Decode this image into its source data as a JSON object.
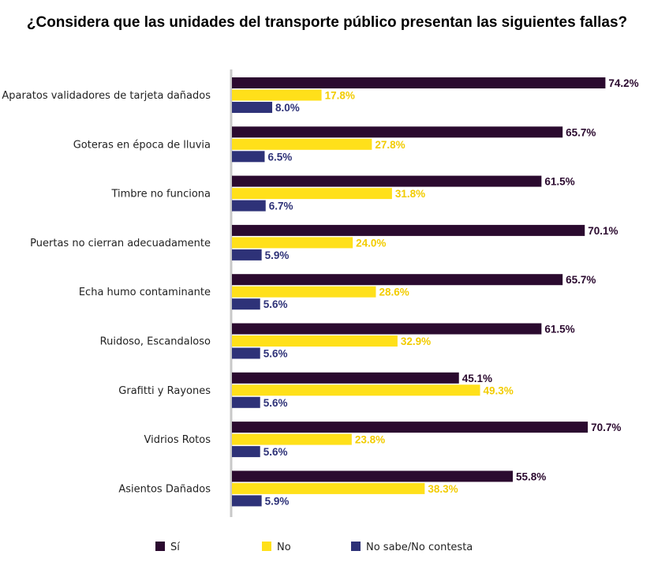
{
  "chart_data": {
    "type": "bar",
    "orientation": "horizontal",
    "title": "¿Considera que las unidades del transporte público presentan las siguientes fallas?",
    "categories": [
      "Aparatos validadores de tarjeta dañados",
      "Goteras en época de lluvia",
      "Timbre no funciona",
      "Puertas no cierran adecuadamente",
      "Echa humo contaminante",
      "Ruidoso, Escandaloso",
      "Grafitti y Rayones",
      "Vidrios Rotos",
      "Asientos Dañados"
    ],
    "series": [
      {
        "name": "Sí",
        "color": "#2b0a2f",
        "label_color": "#2b0a2f",
        "values": [
          74.2,
          65.7,
          61.5,
          70.1,
          65.7,
          61.5,
          45.1,
          70.7,
          55.8
        ],
        "labels": [
          "74.2%",
          "65.7%",
          "61.5%",
          "70.1%",
          "65.7%",
          "61.5%",
          "45.1%",
          "70.7%",
          "55.8%"
        ]
      },
      {
        "name": "No",
        "color": "#ffe01a",
        "label_color": "#f2cc00",
        "values": [
          17.8,
          27.8,
          31.8,
          24.0,
          28.6,
          32.9,
          49.3,
          23.8,
          38.3
        ],
        "labels": [
          "17.8%",
          "27.8%",
          "31.8%",
          "24.0%",
          "28.6%",
          "32.9%",
          "49.3%",
          "23.8%",
          "38.3%"
        ]
      },
      {
        "name": "No sabe/No contesta",
        "color": "#2e3278",
        "label_color": "#2e3278",
        "values": [
          8.0,
          6.5,
          6.7,
          5.9,
          5.6,
          5.6,
          5.6,
          5.6,
          5.9
        ],
        "labels": [
          "8.0%",
          "6.5%",
          "6.7%",
          "5.9%",
          "5.6%",
          "5.6%",
          "5.6%",
          "5.6%",
          "5.9%"
        ]
      }
    ],
    "xlim": [
      0,
      100
    ],
    "grid": false,
    "legend_position": "bottom"
  }
}
